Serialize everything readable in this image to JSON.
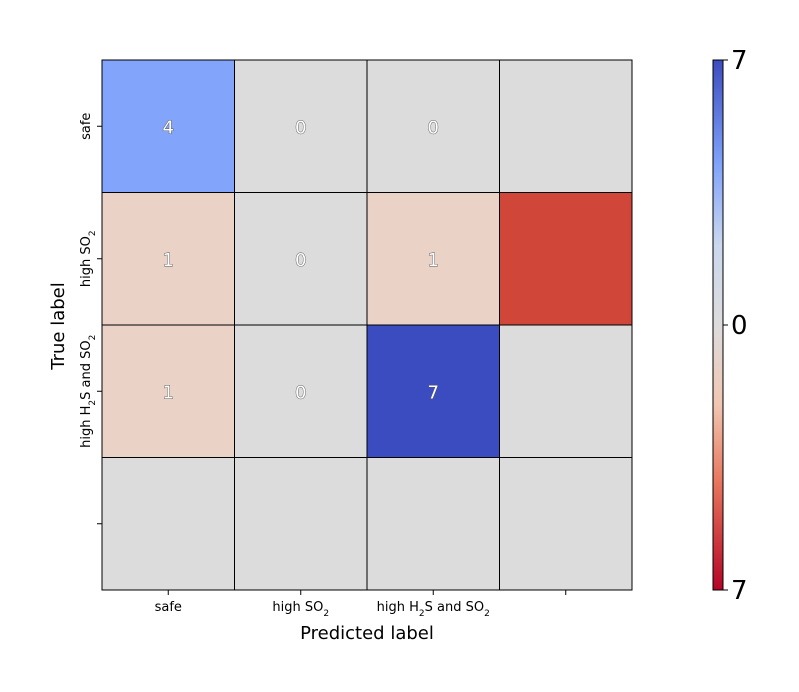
{
  "chart_data": {
    "type": "heatmap",
    "title": "",
    "xlabel": "Predicted label",
    "ylabel": "True label",
    "x_tick_labels": [
      {
        "main": "safe",
        "parts": [
          [
            "safe",
            false
          ]
        ]
      },
      {
        "main": "high SO2",
        "parts": [
          [
            "high SO",
            false
          ],
          [
            "2",
            true
          ]
        ]
      },
      {
        "main": "high H2S and SO2",
        "parts": [
          [
            "high H",
            false
          ],
          [
            "2",
            true
          ],
          [
            "S and SO",
            false
          ],
          [
            "2",
            true
          ]
        ]
      },
      {
        "main": "",
        "parts": []
      }
    ],
    "y_tick_labels": [
      {
        "main": "safe",
        "parts": [
          [
            "safe",
            false
          ]
        ]
      },
      {
        "main": "high SO2",
        "parts": [
          [
            "high SO",
            false
          ],
          [
            "2",
            true
          ]
        ]
      },
      {
        "main": "high H2S and SO2",
        "parts": [
          [
            "high H",
            false
          ],
          [
            "2",
            true
          ],
          [
            "S and SO",
            false
          ],
          [
            "2",
            true
          ]
        ]
      },
      {
        "main": "",
        "parts": []
      }
    ],
    "values": [
      [
        4,
        0,
        0,
        null
      ],
      [
        1,
        0,
        1,
        -7
      ],
      [
        1,
        0,
        7,
        null
      ],
      [
        null,
        null,
        null,
        null
      ]
    ],
    "annotations": [
      [
        "4",
        "0",
        "0",
        ""
      ],
      [
        "1",
        "0",
        "1",
        ""
      ],
      [
        "1",
        "0",
        "7",
        ""
      ],
      [
        "",
        "",
        "",
        ""
      ]
    ],
    "colormap": "coolwarm_r",
    "vmin": -7,
    "vmax": 7,
    "colorbar": {
      "ticks": [
        {
          "value": 7,
          "label": "7"
        },
        {
          "value": 0,
          "label": "0"
        },
        {
          "value": -7,
          "label": "7"
        }
      ]
    },
    "colors": {
      "low": "#b40426",
      "mid": "#dddcdc",
      "high": "#3b4cc0"
    }
  }
}
